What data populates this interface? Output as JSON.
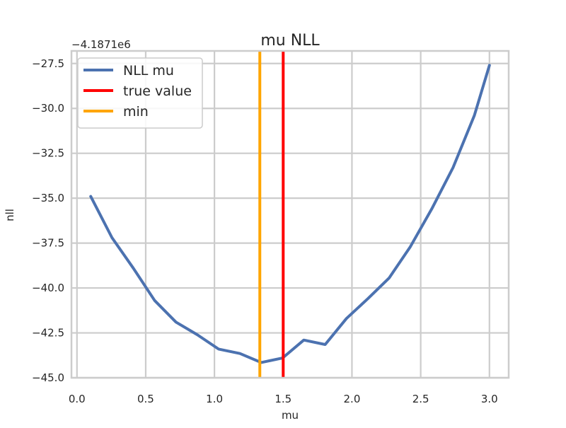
{
  "chart_data": {
    "type": "line",
    "title": "mu NLL",
    "xlabel": "mu",
    "ylabel": "nll",
    "y_offset_label": "−4.1871e6",
    "xlim": [
      -0.04,
      3.14
    ],
    "ylim": [
      -45.0,
      -26.8
    ],
    "x_ticks": [
      0.0,
      0.5,
      1.0,
      1.5,
      2.0,
      2.5,
      3.0
    ],
    "x_tick_labels": [
      "0.0",
      "0.5",
      "1.0",
      "1.5",
      "2.0",
      "2.5",
      "3.0"
    ],
    "y_ticks": [
      -45.0,
      -42.5,
      -40.0,
      -37.5,
      -35.0,
      -32.5,
      -30.0,
      -27.5
    ],
    "y_tick_labels": [
      "−45.0",
      "−42.5",
      "−40.0",
      "−37.5",
      "−35.0",
      "−32.5",
      "−30.0",
      "−27.5"
    ],
    "grid": true,
    "legend_position": "top-left",
    "series": [
      {
        "name": "NLL mu",
        "color": "#4c72b0",
        "x": [
          0.1,
          0.255,
          0.41,
          0.565,
          0.72,
          0.875,
          1.03,
          1.185,
          1.34,
          1.495,
          1.65,
          1.805,
          1.96,
          2.115,
          2.27,
          2.425,
          2.58,
          2.735,
          2.89,
          3.0
        ],
        "y": [
          -34.9,
          -37.2,
          -38.9,
          -40.7,
          -41.9,
          -42.6,
          -43.4,
          -43.65,
          -44.15,
          -43.9,
          -42.9,
          -43.15,
          -41.7,
          -40.6,
          -39.45,
          -37.7,
          -35.6,
          -33.3,
          -30.4,
          -27.6
        ]
      }
    ],
    "vlines": [
      {
        "name": "true value",
        "x": 1.5,
        "color": "#ff0000"
      },
      {
        "name": "min",
        "x": 1.33,
        "color": "#ffa500"
      }
    ]
  }
}
